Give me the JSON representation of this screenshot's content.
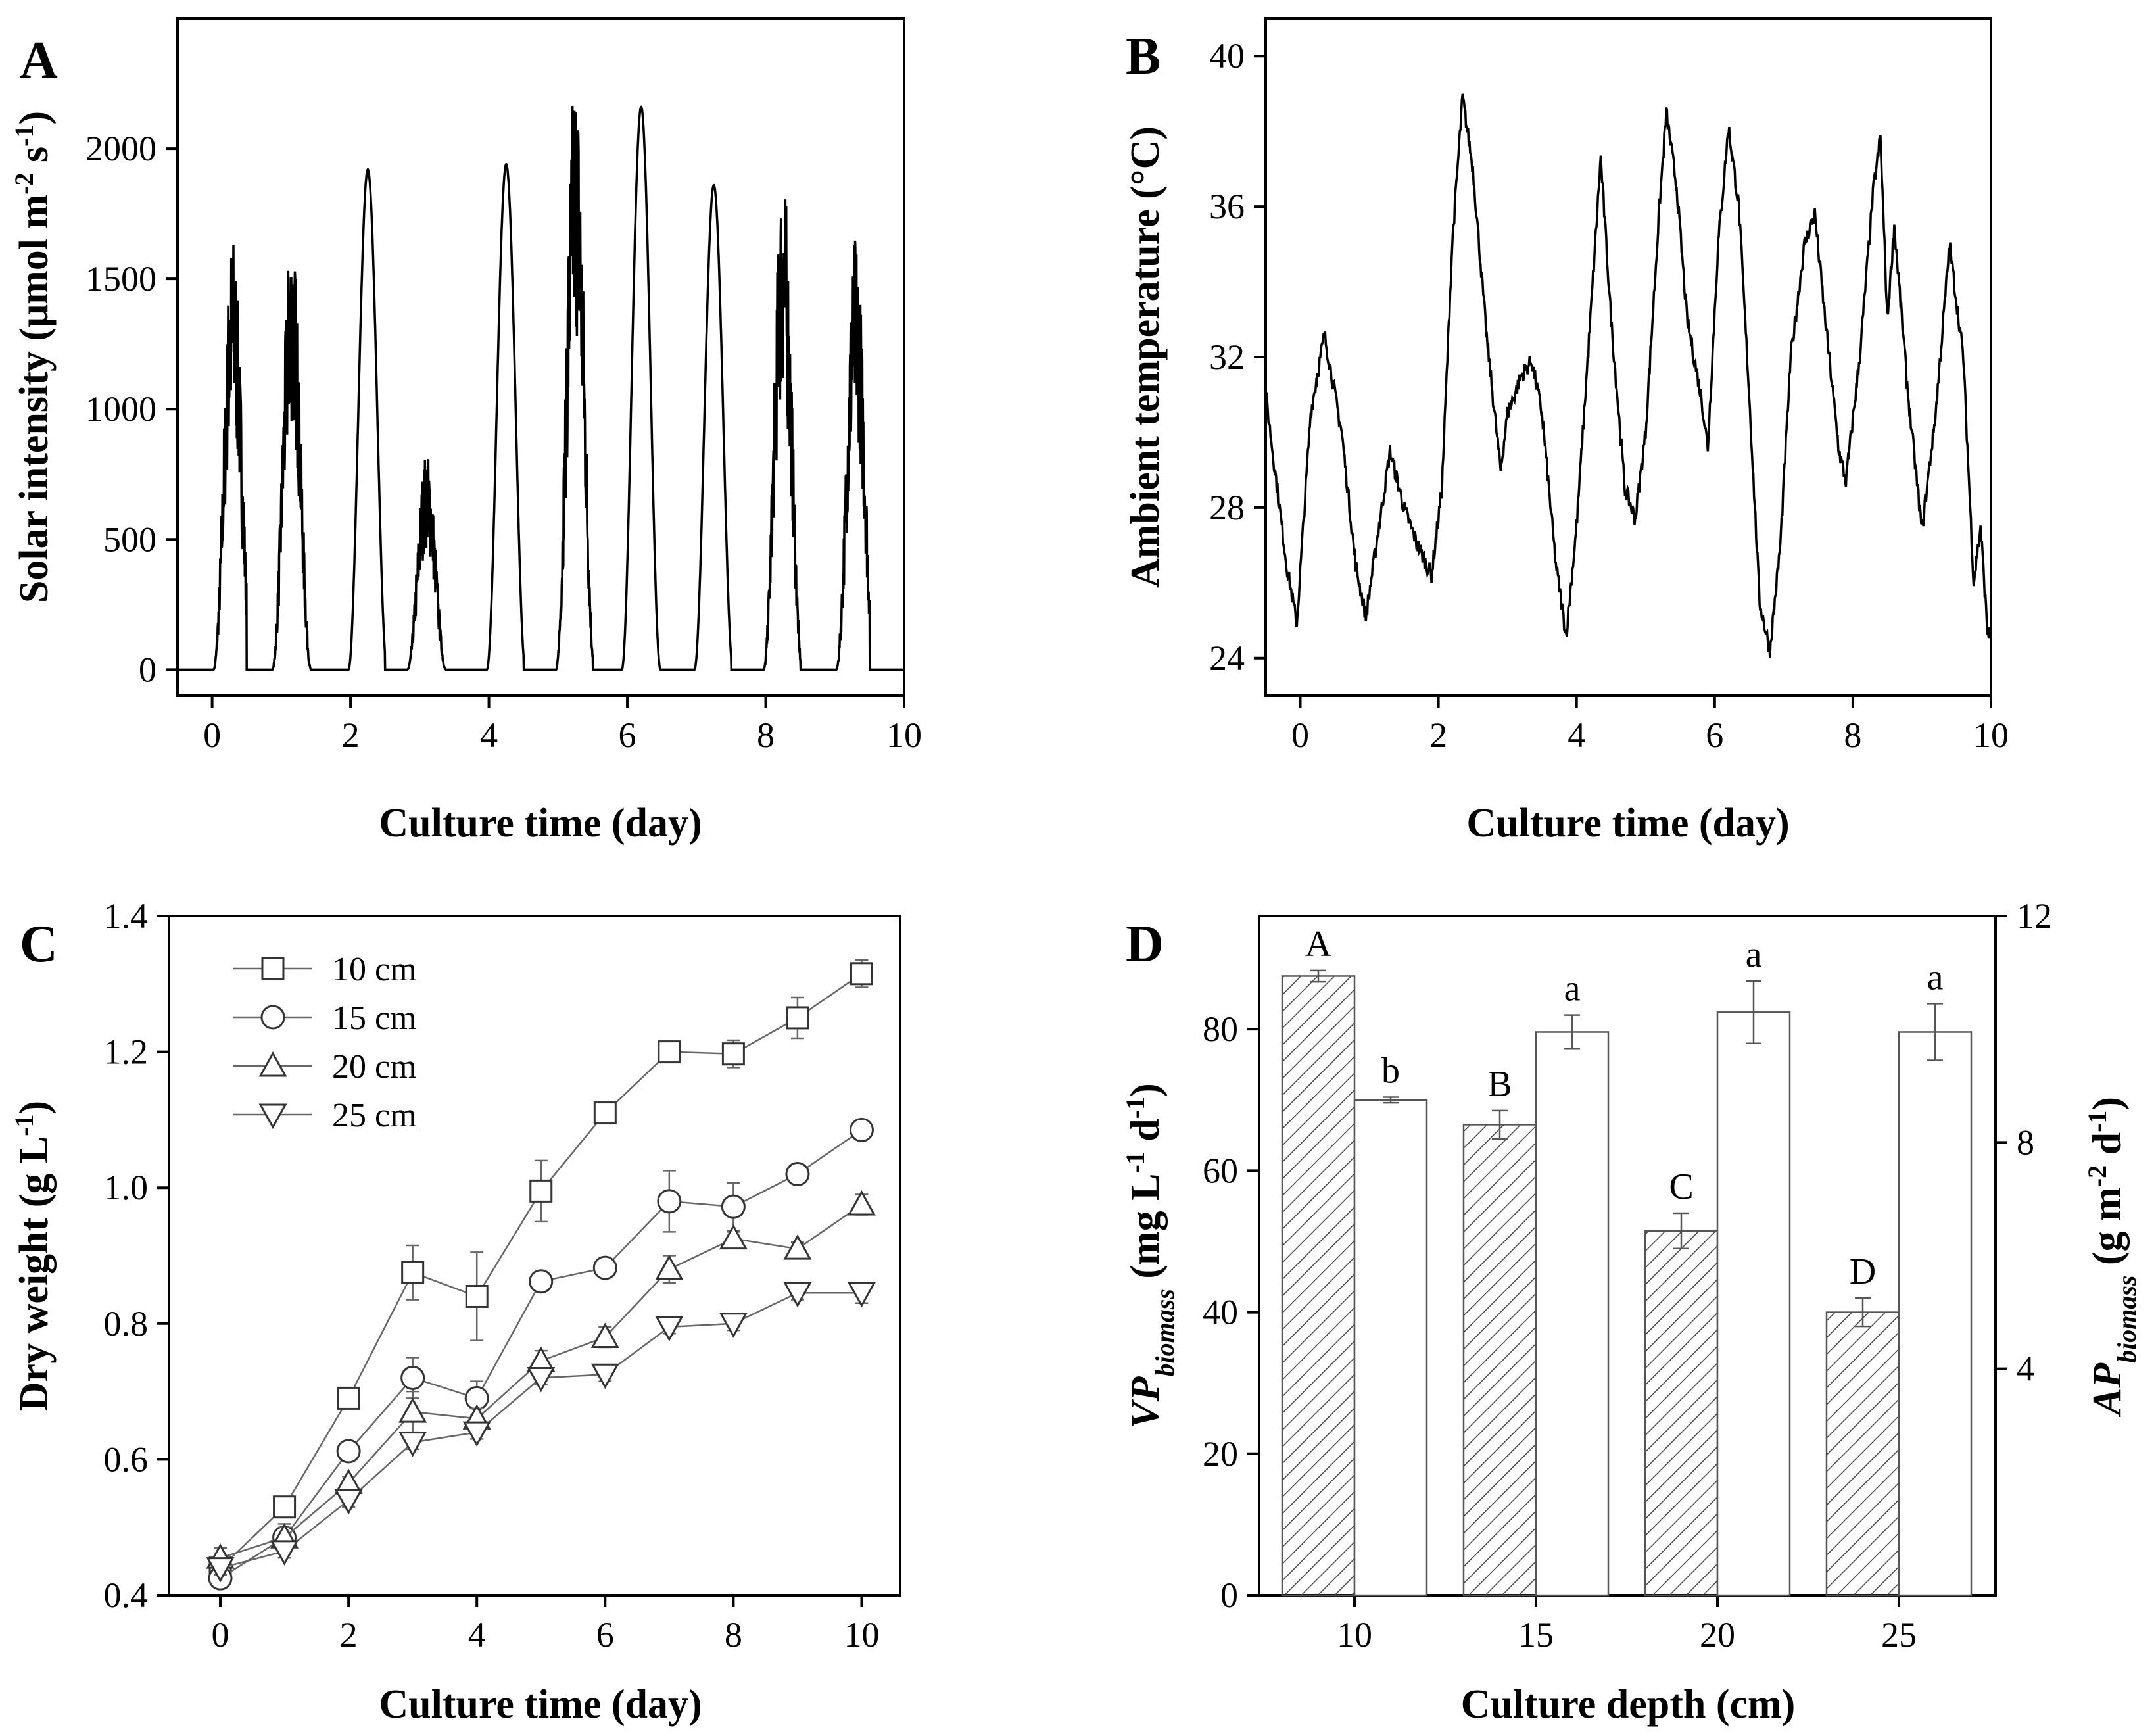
{
  "figure": {
    "panels": [
      "A",
      "B",
      "C",
      "D"
    ]
  },
  "chart_data": [
    {
      "panel": "A",
      "type": "line",
      "xlabel": "Culture time (day)",
      "ylabel_main": "Solar intensity (μmol m",
      "ylabel_sup1": "-2",
      "ylabel_mid": " s",
      "ylabel_sup2": "-1",
      "ylabel_end": ")",
      "xlim": [
        -0.5,
        10
      ],
      "ylim": [
        -100,
        2500
      ],
      "xticks": [
        0,
        2,
        4,
        6,
        8,
        10
      ],
      "yticks": [
        0,
        500,
        1000,
        1500,
        2000
      ],
      "daily_peaks": [
        1680,
        1700,
        1920,
        840,
        1940,
        2320,
        2160,
        1860,
        1920,
        1680
      ],
      "peak_times": [
        0.3,
        1.15,
        2.25,
        3.1,
        4.25,
        5.25,
        6.2,
        7.25,
        8.25,
        9.3
      ]
    },
    {
      "panel": "B",
      "type": "line",
      "xlabel": "Culture time (day)",
      "ylabel": "Ambient temperature (°C)",
      "xlim": [
        -0.5,
        10
      ],
      "ylim": [
        23,
        41
      ],
      "xticks": [
        0,
        2,
        4,
        6,
        8,
        10
      ],
      "yticks": [
        24,
        28,
        32,
        36,
        40
      ],
      "keypoints": [
        [
          -0.5,
          31.0
        ],
        [
          -0.2,
          26.5
        ],
        [
          -0.05,
          24.9
        ],
        [
          0.15,
          30.5
        ],
        [
          0.35,
          32.6
        ],
        [
          0.6,
          30.0
        ],
        [
          0.8,
          26.5
        ],
        [
          0.95,
          25.1
        ],
        [
          1.1,
          27.0
        ],
        [
          1.3,
          29.5
        ],
        [
          1.5,
          28.0
        ],
        [
          1.7,
          27.0
        ],
        [
          1.9,
          26.2
        ],
        [
          2.05,
          28.5
        ],
        [
          2.2,
          35.0
        ],
        [
          2.35,
          38.9
        ],
        [
          2.5,
          37.0
        ],
        [
          2.7,
          32.5
        ],
        [
          2.9,
          29.0
        ],
        [
          3.0,
          30.5
        ],
        [
          3.2,
          31.5
        ],
        [
          3.35,
          31.9
        ],
        [
          3.5,
          30.5
        ],
        [
          3.7,
          26.5
        ],
        [
          3.85,
          24.6
        ],
        [
          4.0,
          27.5
        ],
        [
          4.2,
          33.0
        ],
        [
          4.35,
          37.3
        ],
        [
          4.5,
          33.0
        ],
        [
          4.7,
          28.5
        ],
        [
          4.85,
          27.7
        ],
        [
          5.0,
          30.0
        ],
        [
          5.2,
          36.0
        ],
        [
          5.3,
          38.5
        ],
        [
          5.45,
          36.5
        ],
        [
          5.6,
          33.0
        ],
        [
          5.8,
          31.0
        ],
        [
          5.9,
          29.6
        ],
        [
          6.05,
          35.0
        ],
        [
          6.2,
          38.1
        ],
        [
          6.35,
          36.0
        ],
        [
          6.5,
          31.0
        ],
        [
          6.65,
          25.5
        ],
        [
          6.8,
          24.2
        ],
        [
          6.95,
          27.0
        ],
        [
          7.1,
          32.0
        ],
        [
          7.3,
          35.0
        ],
        [
          7.45,
          35.8
        ],
        [
          7.6,
          33.0
        ],
        [
          7.8,
          29.5
        ],
        [
          7.9,
          28.7
        ],
        [
          8.1,
          32.0
        ],
        [
          8.3,
          36.5
        ],
        [
          8.4,
          37.8
        ],
        [
          8.5,
          33.0
        ],
        [
          8.6,
          35.5
        ],
        [
          8.8,
          31.0
        ],
        [
          9.0,
          27.4
        ],
        [
          9.2,
          30.5
        ],
        [
          9.4,
          35.0
        ],
        [
          9.6,
          32.0
        ],
        [
          9.75,
          26.0
        ],
        [
          9.85,
          27.5
        ],
        [
          9.95,
          24.7
        ],
        [
          10.0,
          24.6
        ]
      ]
    },
    {
      "panel": "C",
      "type": "line",
      "xlabel": "Culture time (day)",
      "ylabel_main": "Dry weight (g L",
      "ylabel_sup": "-1",
      "ylabel_end": ")",
      "xlim": [
        -0.8,
        10.6
      ],
      "ylim": [
        0.4,
        1.4
      ],
      "xticks": [
        0,
        2,
        4,
        6,
        8,
        10
      ],
      "yticks": [
        0.4,
        0.6,
        0.8,
        1.0,
        1.2,
        1.4
      ],
      "ytick_labels": [
        "0.4",
        "0.6",
        "0.8",
        "1.0",
        "1.2",
        "1.4"
      ],
      "x": [
        0,
        1,
        2,
        3,
        4,
        5,
        6,
        7,
        8,
        9,
        10
      ],
      "series": [
        {
          "name": "10 cm",
          "marker": "square",
          "values": [
            0.44,
            0.53,
            0.69,
            0.875,
            0.84,
            0.995,
            1.11,
            1.2,
            1.197,
            1.25,
            1.315
          ],
          "err": [
            0.015,
            0.012,
            0.01,
            0.04,
            0.065,
            0.045,
            0.01,
            0.008,
            0.02,
            0.03,
            0.02
          ]
        },
        {
          "name": "15 cm",
          "marker": "circle",
          "values": [
            0.425,
            0.485,
            0.612,
            0.72,
            0.69,
            0.862,
            0.882,
            0.98,
            0.972,
            1.02,
            1.085
          ],
          "err": [
            0.01,
            0.02,
            0.01,
            0.03,
            0.025,
            0.01,
            0.01,
            0.045,
            0.035,
            0.01,
            0.01
          ]
        },
        {
          "name": "20 cm",
          "marker": "triangle-up",
          "values": [
            0.455,
            0.485,
            0.565,
            0.67,
            0.66,
            0.745,
            0.78,
            0.88,
            0.925,
            0.91,
            0.975
          ],
          "err": [
            0.015,
            0.015,
            0.01,
            0.03,
            0.015,
            0.015,
            0.015,
            0.02,
            0.01,
            0.01,
            0.015
          ]
        },
        {
          "name": "25 cm",
          "marker": "triangle-down",
          "values": [
            0.44,
            0.465,
            0.54,
            0.625,
            0.64,
            0.72,
            0.725,
            0.795,
            0.8,
            0.845,
            0.845
          ],
          "err": [
            0.01,
            0.01,
            0.01,
            0.01,
            0.01,
            0.01,
            0.01,
            0.01,
            0.01,
            0.01,
            0.015
          ]
        }
      ]
    },
    {
      "panel": "D",
      "type": "bar",
      "xlabel": "Culture depth (cm)",
      "ylabel_left": {
        "italic": "VP",
        "sub": "biomass",
        "rest": " (mg L",
        "sup1": "-1",
        "mid": " d",
        "sup2": "-1",
        "end": ")"
      },
      "ylabel_right": {
        "italic": "AP",
        "sub": "biomass",
        "rest": " (g m",
        "sup1": "-2",
        "mid": " d",
        "sup2": "-1",
        "end": ")"
      },
      "categories": [
        "10",
        "15",
        "20",
        "25"
      ],
      "ylim_left": [
        0,
        96
      ],
      "yticks_left": [
        0,
        20,
        40,
        60,
        80
      ],
      "ylim_right": [
        0,
        12
      ],
      "yticks_right": [
        4,
        8,
        12
      ],
      "series": [
        {
          "axis": "left",
          "pattern": "hatched",
          "values": [
            87.5,
            66.5,
            51.5,
            40.0
          ],
          "err": [
            0.8,
            2.0,
            2.5,
            2.0
          ],
          "letters": [
            "A",
            "B",
            "C",
            "D"
          ]
        },
        {
          "axis": "right",
          "pattern": "open",
          "values": [
            8.75,
            9.95,
            10.3,
            9.95
          ],
          "err": [
            0.05,
            0.3,
            0.55,
            0.5
          ],
          "letters": [
            "b",
            "a",
            "a",
            "a"
          ]
        }
      ]
    }
  ]
}
